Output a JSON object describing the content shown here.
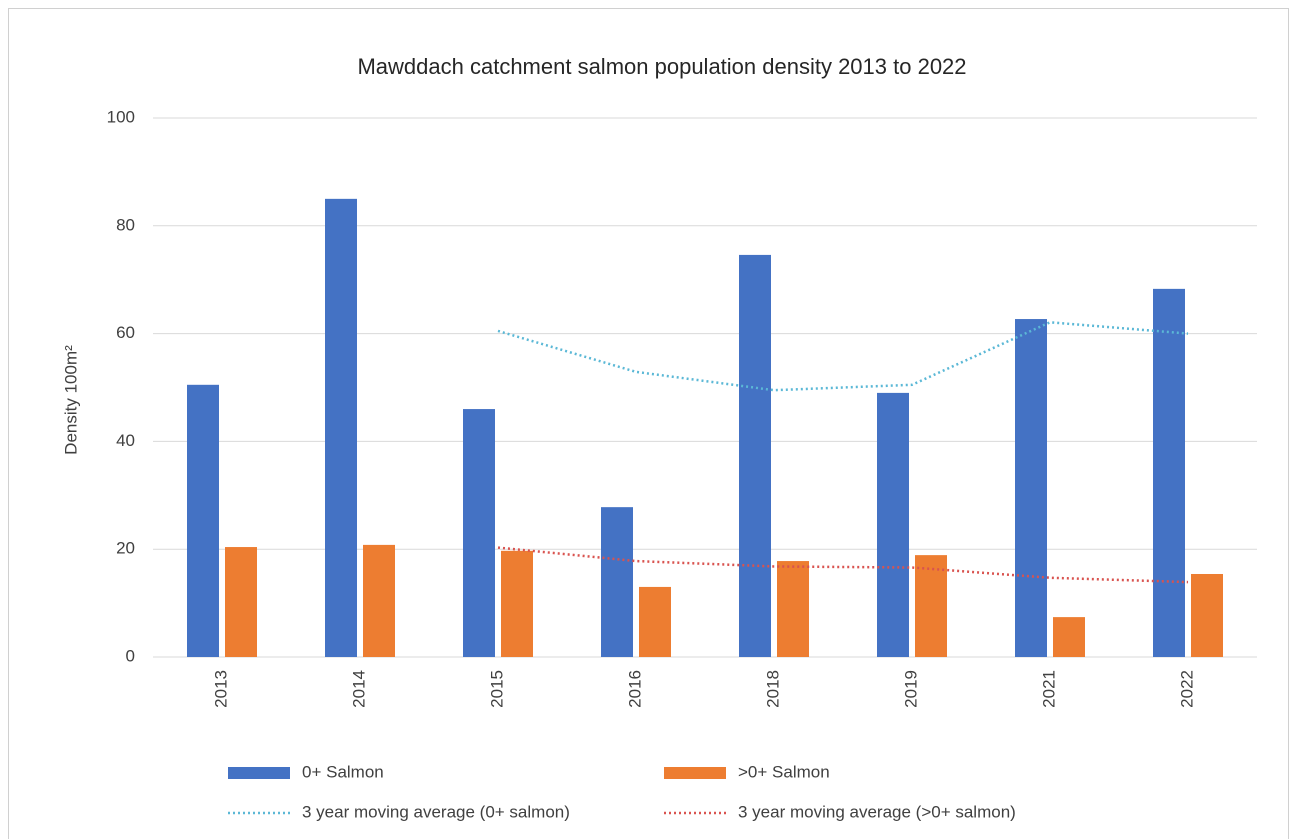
{
  "chart_data": {
    "type": "bar",
    "title": "Mawddach catchment salmon population density 2013 to 2022",
    "y_label": "Density 100m²",
    "categories": [
      "2013",
      "2014",
      "2015",
      "2016",
      "2018",
      "2019",
      "2021",
      "2022"
    ],
    "series": [
      {
        "name": "0+ Salmon",
        "type": "bar",
        "color": "#4472c4",
        "values": [
          50.5,
          85,
          46,
          27.8,
          74.6,
          49,
          62.7,
          68.3
        ]
      },
      {
        "name": ">0+ Salmon",
        "type": "bar",
        "color": "#ed7d31",
        "values": [
          20.4,
          20.8,
          19.7,
          13,
          17.8,
          18.9,
          7.4,
          15.4
        ]
      },
      {
        "name": "3 year moving average (0+ salmon)",
        "type": "line",
        "style": "dotted",
        "color": "#5bb8d6",
        "values": [
          null,
          null,
          60.5,
          52.9,
          49.5,
          50.5,
          62.1,
          60
        ]
      },
      {
        "name": "3 year moving average (>0+ salmon)",
        "type": "line",
        "style": "dotted",
        "color": "#d9534f",
        "values": [
          null,
          null,
          20.3,
          17.8,
          16.8,
          16.6,
          14.7,
          13.9
        ]
      }
    ],
    "ylim": [
      0,
      100
    ],
    "yticks": [
      0,
      20,
      40,
      60,
      80,
      100
    ],
    "grid": true,
    "legend": "bottom"
  }
}
